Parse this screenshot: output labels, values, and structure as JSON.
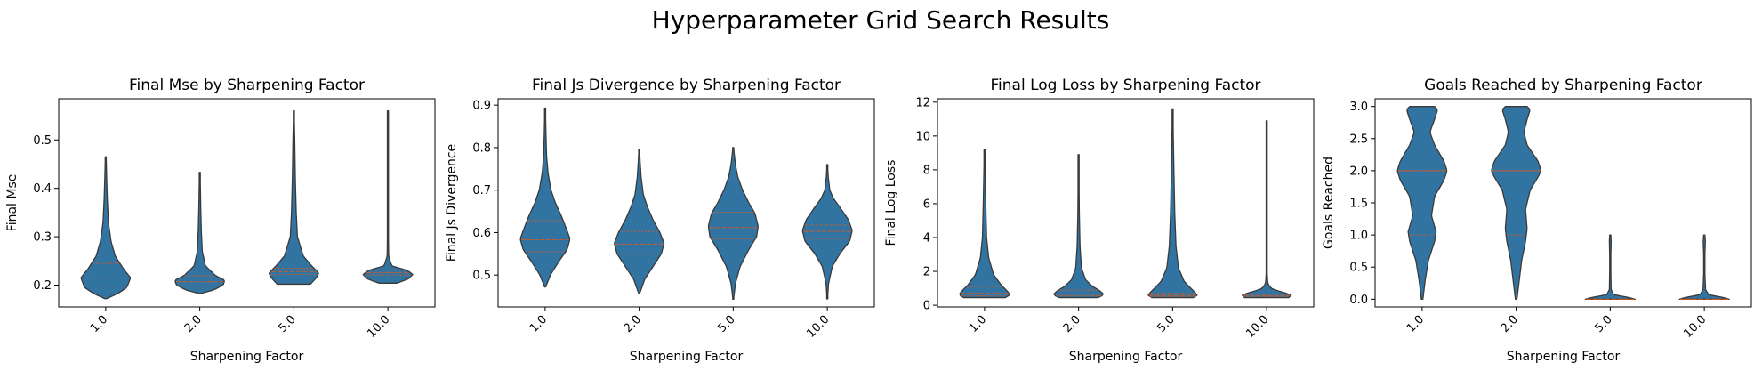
{
  "figure": {
    "title": "Hyperparameter Grid Search Results"
  },
  "colors": {
    "violin_fill": "#3274a1",
    "violin_edge": "#3a3a3a",
    "quartile_line": "#cc5a2a",
    "axes": "#000000"
  },
  "chart_data": [
    {
      "type": "violin",
      "title": "Final Mse by Sharpening Factor",
      "xlabel": "Sharpening Factor",
      "ylabel": "Final Mse",
      "categories": [
        "1.0",
        "2.0",
        "5.0",
        "10.0"
      ],
      "ylim": [
        0.155,
        0.585
      ],
      "yticks": [
        0.2,
        0.3,
        0.4,
        0.5
      ],
      "ytick_labels": [
        "0.2",
        "0.3",
        "0.4",
        "0.5"
      ],
      "violins": [
        {
          "min": 0.172,
          "max": 0.465,
          "q1": 0.198,
          "median": 0.215,
          "q3": 0.245,
          "density": [
            [
              0.172,
              0.02
            ],
            [
              0.182,
              0.3
            ],
            [
              0.195,
              0.55
            ],
            [
              0.215,
              0.65
            ],
            [
              0.235,
              0.45
            ],
            [
              0.26,
              0.25
            ],
            [
              0.29,
              0.14
            ],
            [
              0.33,
              0.07
            ],
            [
              0.38,
              0.04
            ],
            [
              0.42,
              0.025
            ],
            [
              0.465,
              0.01
            ]
          ]
        },
        {
          "min": 0.183,
          "max": 0.433,
          "q1": 0.198,
          "median": 0.207,
          "q3": 0.219,
          "density": [
            [
              0.183,
              0.05
            ],
            [
              0.19,
              0.45
            ],
            [
              0.2,
              0.75
            ],
            [
              0.21,
              0.8
            ],
            [
              0.22,
              0.5
            ],
            [
              0.24,
              0.18
            ],
            [
              0.27,
              0.08
            ],
            [
              0.31,
              0.05
            ],
            [
              0.36,
              0.03
            ],
            [
              0.4,
              0.02
            ],
            [
              0.433,
              0.01
            ]
          ]
        },
        {
          "min": 0.202,
          "max": 0.56,
          "q1": 0.222,
          "median": 0.228,
          "q3": 0.235,
          "density": [
            [
              0.202,
              0.28
            ],
            [
              0.215,
              0.38
            ],
            [
              0.225,
              0.42
            ],
            [
              0.24,
              0.3
            ],
            [
              0.26,
              0.16
            ],
            [
              0.3,
              0.06
            ],
            [
              0.35,
              0.04
            ],
            [
              0.42,
              0.025
            ],
            [
              0.5,
              0.015
            ],
            [
              0.56,
              0.005
            ]
          ]
        },
        {
          "min": 0.204,
          "max": 0.56,
          "q1": 0.221,
          "median": 0.226,
          "q3": 0.231,
          "density": [
            [
              0.204,
              0.35
            ],
            [
              0.212,
              0.8
            ],
            [
              0.222,
              1.0
            ],
            [
              0.23,
              0.8
            ],
            [
              0.24,
              0.15
            ],
            [
              0.26,
              0.03
            ],
            [
              0.3,
              0.02
            ],
            [
              0.4,
              0.012
            ],
            [
              0.5,
              0.008
            ],
            [
              0.56,
              0.004
            ]
          ]
        }
      ]
    },
    {
      "type": "violin",
      "title": "Final Js Divergence by Sharpening Factor",
      "xlabel": "Sharpening Factor",
      "ylabel": "Final Js Divergence",
      "categories": [
        "1.0",
        "2.0",
        "5.0",
        "10.0"
      ],
      "ylim": [
        0.425,
        0.915
      ],
      "yticks": [
        0.5,
        0.6,
        0.7,
        0.8,
        0.9
      ],
      "ytick_labels": [
        "0.5",
        "0.6",
        "0.7",
        "0.8",
        "0.9"
      ],
      "violins": [
        {
          "min": 0.472,
          "max": 0.893,
          "q1": 0.555,
          "median": 0.583,
          "q3": 0.628,
          "density": [
            [
              0.472,
              0.02
            ],
            [
              0.5,
              0.18
            ],
            [
              0.53,
              0.45
            ],
            [
              0.56,
              0.75
            ],
            [
              0.585,
              0.85
            ],
            [
              0.61,
              0.72
            ],
            [
              0.64,
              0.55
            ],
            [
              0.67,
              0.35
            ],
            [
              0.7,
              0.2
            ],
            [
              0.74,
              0.1
            ],
            [
              0.78,
              0.05
            ],
            [
              0.83,
              0.03
            ],
            [
              0.893,
              0.01
            ]
          ]
        },
        {
          "min": 0.457,
          "max": 0.795,
          "q1": 0.55,
          "median": 0.573,
          "q3": 0.603,
          "density": [
            [
              0.457,
              0.02
            ],
            [
              0.49,
              0.2
            ],
            [
              0.52,
              0.5
            ],
            [
              0.55,
              0.8
            ],
            [
              0.575,
              0.9
            ],
            [
              0.6,
              0.75
            ],
            [
              0.63,
              0.5
            ],
            [
              0.66,
              0.3
            ],
            [
              0.69,
              0.15
            ],
            [
              0.73,
              0.07
            ],
            [
              0.76,
              0.04
            ],
            [
              0.795,
              0.01
            ]
          ]
        },
        {
          "min": 0.443,
          "max": 0.8,
          "q1": 0.585,
          "median": 0.612,
          "q3": 0.648,
          "density": [
            [
              0.443,
              0.01
            ],
            [
              0.48,
              0.07
            ],
            [
              0.52,
              0.22
            ],
            [
              0.56,
              0.5
            ],
            [
              0.59,
              0.75
            ],
            [
              0.615,
              0.8
            ],
            [
              0.645,
              0.7
            ],
            [
              0.67,
              0.5
            ],
            [
              0.7,
              0.3
            ],
            [
              0.73,
              0.15
            ],
            [
              0.76,
              0.07
            ],
            [
              0.8,
              0.01
            ]
          ]
        },
        {
          "min": 0.444,
          "max": 0.76,
          "q1": 0.586,
          "median": 0.603,
          "q3": 0.618,
          "density": [
            [
              0.444,
              0.01
            ],
            [
              0.48,
              0.05
            ],
            [
              0.52,
              0.2
            ],
            [
              0.55,
              0.5
            ],
            [
              0.58,
              0.9
            ],
            [
              0.605,
              1.0
            ],
            [
              0.63,
              0.85
            ],
            [
              0.66,
              0.5
            ],
            [
              0.68,
              0.25
            ],
            [
              0.7,
              0.1
            ],
            [
              0.73,
              0.04
            ],
            [
              0.76,
              0.01
            ]
          ]
        }
      ]
    },
    {
      "type": "violin",
      "title": "Final Log Loss by Sharpening Factor",
      "xlabel": "Sharpening Factor",
      "ylabel": "Final Log Loss",
      "categories": [
        "1.0",
        "2.0",
        "5.0",
        "10.0"
      ],
      "ylim": [
        -0.1,
        12.2
      ],
      "yticks": [
        0,
        2,
        4,
        6,
        8,
        10,
        12
      ],
      "ytick_labels": [
        "0",
        "2",
        "4",
        "6",
        "8",
        "10",
        "12"
      ],
      "violins": [
        {
          "min": 0.45,
          "max": 9.2,
          "q1": 0.55,
          "median": 0.7,
          "q3": 1.1,
          "density": [
            [
              0.45,
              0.5
            ],
            [
              0.55,
              0.58
            ],
            [
              0.7,
              0.6
            ],
            [
              0.9,
              0.52
            ],
            [
              1.2,
              0.4
            ],
            [
              1.8,
              0.22
            ],
            [
              2.8,
              0.1
            ],
            [
              4.0,
              0.05
            ],
            [
              6.0,
              0.03
            ],
            [
              8.0,
              0.015
            ],
            [
              9.2,
              0.005
            ]
          ]
        },
        {
          "min": 0.45,
          "max": 8.9,
          "q1": 0.55,
          "median": 0.65,
          "q3": 0.9,
          "density": [
            [
              0.45,
              0.55
            ],
            [
              0.55,
              0.65
            ],
            [
              0.65,
              0.7
            ],
            [
              0.85,
              0.6
            ],
            [
              1.1,
              0.4
            ],
            [
              1.5,
              0.2
            ],
            [
              2.2,
              0.08
            ],
            [
              3.5,
              0.04
            ],
            [
              5.5,
              0.02
            ],
            [
              7.5,
              0.012
            ],
            [
              8.9,
              0.005
            ]
          ]
        },
        {
          "min": 0.45,
          "max": 11.6,
          "q1": 0.52,
          "median": 0.58,
          "q3": 0.7,
          "density": [
            [
              0.45,
              0.25
            ],
            [
              0.55,
              0.3
            ],
            [
              0.7,
              0.28
            ],
            [
              1.0,
              0.22
            ],
            [
              1.4,
              0.14
            ],
            [
              2.2,
              0.07
            ],
            [
              3.5,
              0.04
            ],
            [
              5.5,
              0.025
            ],
            [
              8.0,
              0.015
            ],
            [
              10.0,
              0.008
            ],
            [
              11.6,
              0.003
            ]
          ]
        },
        {
          "min": 0.45,
          "max": 10.9,
          "q1": 0.52,
          "median": 0.58,
          "q3": 0.66,
          "density": [
            [
              0.45,
              0.8
            ],
            [
              0.55,
              0.9
            ],
            [
              0.65,
              0.85
            ],
            [
              0.8,
              0.5
            ],
            [
              1.0,
              0.15
            ],
            [
              1.3,
              0.04
            ],
            [
              2.0,
              0.015
            ],
            [
              4.0,
              0.01
            ],
            [
              7.0,
              0.007
            ],
            [
              9.0,
              0.005
            ],
            [
              10.9,
              0.002
            ]
          ]
        }
      ]
    },
    {
      "type": "violin",
      "title": "Goals Reached by Sharpening Factor",
      "xlabel": "Sharpening Factor",
      "ylabel": "Goals Reached",
      "categories": [
        "1.0",
        "2.0",
        "5.0",
        "10.0"
      ],
      "ylim": [
        -0.12,
        3.12
      ],
      "yticks": [
        0,
        0.5,
        1,
        1.5,
        2,
        2.5,
        3
      ],
      "ytick_labels": [
        "0.0",
        "0.5",
        "1.0",
        "1.5",
        "2.0",
        "2.5",
        "3.0"
      ],
      "violins": [
        {
          "min": 0.0,
          "max": 3.0,
          "q1": 1.0,
          "median": 2.0,
          "q3": 2.0,
          "density": [
            [
              0.0,
              0.005
            ],
            [
              0.3,
              0.02
            ],
            [
              0.6,
              0.04
            ],
            [
              0.9,
              0.08
            ],
            [
              1.05,
              0.09
            ],
            [
              1.3,
              0.06
            ],
            [
              1.6,
              0.08
            ],
            [
              1.85,
              0.14
            ],
            [
              2.0,
              0.16
            ],
            [
              2.15,
              0.14
            ],
            [
              2.4,
              0.08
            ],
            [
              2.6,
              0.05
            ],
            [
              2.8,
              0.08
            ],
            [
              2.95,
              0.1
            ],
            [
              3.0,
              0.08
            ]
          ]
        },
        {
          "min": 0.0,
          "max": 3.0,
          "q1": 1.0,
          "median": 2.0,
          "q3": 2.0,
          "density": [
            [
              0.0,
              0.005
            ],
            [
              0.3,
              0.02
            ],
            [
              0.6,
              0.035
            ],
            [
              0.9,
              0.06
            ],
            [
              1.1,
              0.07
            ],
            [
              1.4,
              0.06
            ],
            [
              1.7,
              0.09
            ],
            [
              1.9,
              0.14
            ],
            [
              2.0,
              0.16
            ],
            [
              2.15,
              0.14
            ],
            [
              2.4,
              0.07
            ],
            [
              2.6,
              0.05
            ],
            [
              2.8,
              0.07
            ],
            [
              2.95,
              0.09
            ],
            [
              3.0,
              0.07
            ]
          ]
        },
        {
          "min": 0.0,
          "max": 1.0,
          "q1": 0.0,
          "median": 0.0,
          "q3": 0.0,
          "density": [
            [
              0.0,
              0.85
            ],
            [
              0.03,
              0.6
            ],
            [
              0.07,
              0.12
            ],
            [
              0.15,
              0.03
            ],
            [
              0.4,
              0.02
            ],
            [
              0.7,
              0.02
            ],
            [
              0.9,
              0.03
            ],
            [
              1.0,
              0.02
            ]
          ]
        },
        {
          "min": 0.0,
          "max": 1.0,
          "q1": 0.0,
          "median": 0.0,
          "q3": 0.0,
          "density": [
            [
              0.0,
              0.8
            ],
            [
              0.03,
              0.58
            ],
            [
              0.07,
              0.14
            ],
            [
              0.15,
              0.04
            ],
            [
              0.4,
              0.02
            ],
            [
              0.7,
              0.02
            ],
            [
              0.9,
              0.035
            ],
            [
              1.0,
              0.02
            ]
          ]
        }
      ]
    }
  ]
}
